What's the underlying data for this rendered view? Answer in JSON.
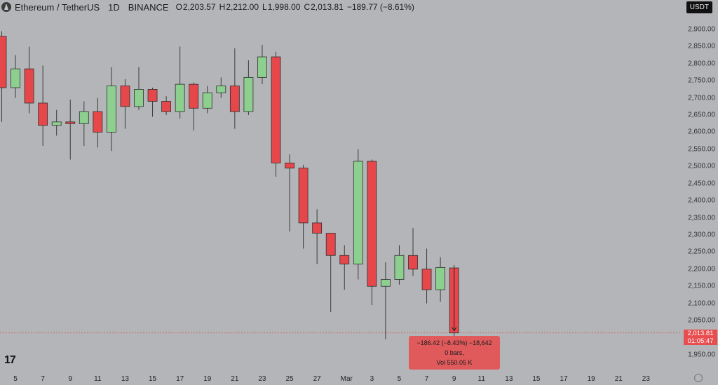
{
  "header": {
    "symbol": "Ethereum / TetherUS",
    "timeframe": "1D",
    "exchange": "BINANCE",
    "o_label": "O",
    "o_value": "2,203.57",
    "h_label": "H",
    "h_value": "2,212.00",
    "l_label": "L",
    "l_value": "1,998.00",
    "c_label": "C",
    "c_value": "2,013.81",
    "change": "−189.77 (−8.61%)"
  },
  "currency_button": "USDT",
  "price_tag": {
    "price": "2,013.81",
    "countdown": "01:05:47"
  },
  "tooltip": {
    "line1": "−186.42 (−8.43%) −18,642",
    "line2": "0 bars,",
    "line3": "Vol 550.05 K"
  },
  "logo_text": "17",
  "colors": {
    "up": "#8ccf8e",
    "down": "#e6474a",
    "background": "#b4b5b8",
    "wick": "#3a3a3a"
  },
  "chart_data": {
    "type": "candlestick",
    "y_axis": {
      "range": [
        1910,
        2930
      ],
      "ticks": [
        "1,950.00",
        "2,050.00",
        "2,100.00",
        "2,150.00",
        "2,200.00",
        "2,250.00",
        "2,300.00",
        "2,350.00",
        "2,400.00",
        "2,450.00",
        "2,500.00",
        "2,550.00",
        "2,600.00",
        "2,650.00",
        "2,700.00",
        "2,750.00",
        "2,800.00",
        "2,850.00",
        "2,900.00"
      ]
    },
    "x_axis": {
      "ticks": [
        "5",
        "7",
        "9",
        "11",
        "13",
        "15",
        "17",
        "19",
        "21",
        "23",
        "25",
        "27",
        "Mar",
        "3",
        "5",
        "7",
        "9",
        "11",
        "13",
        "15",
        "17",
        "19",
        "21",
        "23"
      ]
    },
    "candles": [
      {
        "date": "Feb 4",
        "o": 2880,
        "h": 2895,
        "l": 2630,
        "c": 2730
      },
      {
        "date": "Feb 5",
        "o": 2730,
        "h": 2825,
        "l": 2700,
        "c": 2785
      },
      {
        "date": "Feb 6",
        "o": 2785,
        "h": 2850,
        "l": 2655,
        "c": 2685
      },
      {
        "date": "Feb 7",
        "o": 2685,
        "h": 2795,
        "l": 2560,
        "c": 2620
      },
      {
        "date": "Feb 8",
        "o": 2620,
        "h": 2665,
        "l": 2590,
        "c": 2630
      },
      {
        "date": "Feb 9",
        "o": 2630,
        "h": 2695,
        "l": 2520,
        "c": 2625
      },
      {
        "date": "Feb 10",
        "o": 2625,
        "h": 2690,
        "l": 2560,
        "c": 2660
      },
      {
        "date": "Feb 11",
        "o": 2660,
        "h": 2700,
        "l": 2555,
        "c": 2600
      },
      {
        "date": "Feb 12",
        "o": 2600,
        "h": 2790,
        "l": 2545,
        "c": 2735
      },
      {
        "date": "Feb 13",
        "o": 2735,
        "h": 2755,
        "l": 2610,
        "c": 2675
      },
      {
        "date": "Feb 14",
        "o": 2675,
        "h": 2790,
        "l": 2665,
        "c": 2725
      },
      {
        "date": "Feb 15",
        "o": 2725,
        "h": 2730,
        "l": 2645,
        "c": 2690
      },
      {
        "date": "Feb 16",
        "o": 2690,
        "h": 2705,
        "l": 2650,
        "c": 2660
      },
      {
        "date": "Feb 17",
        "o": 2660,
        "h": 2850,
        "l": 2640,
        "c": 2740
      },
      {
        "date": "Feb 18",
        "o": 2740,
        "h": 2745,
        "l": 2605,
        "c": 2670
      },
      {
        "date": "Feb 19",
        "o": 2670,
        "h": 2735,
        "l": 2655,
        "c": 2715
      },
      {
        "date": "Feb 20",
        "o": 2715,
        "h": 2760,
        "l": 2700,
        "c": 2735
      },
      {
        "date": "Feb 21",
        "o": 2735,
        "h": 2845,
        "l": 2610,
        "c": 2660
      },
      {
        "date": "Feb 22",
        "o": 2660,
        "h": 2810,
        "l": 2650,
        "c": 2760
      },
      {
        "date": "Feb 23",
        "o": 2760,
        "h": 2855,
        "l": 2740,
        "c": 2820
      },
      {
        "date": "Feb 24",
        "o": 2820,
        "h": 2835,
        "l": 2470,
        "c": 2510
      },
      {
        "date": "Feb 25",
        "o": 2510,
        "h": 2535,
        "l": 2310,
        "c": 2495
      },
      {
        "date": "Feb 26",
        "o": 2495,
        "h": 2505,
        "l": 2260,
        "c": 2335
      },
      {
        "date": "Feb 27",
        "o": 2335,
        "h": 2375,
        "l": 2215,
        "c": 2305
      },
      {
        "date": "Feb 28",
        "o": 2305,
        "h": 2305,
        "l": 2075,
        "c": 2240
      },
      {
        "date": "Mar 1",
        "o": 2240,
        "h": 2270,
        "l": 2140,
        "c": 2215
      },
      {
        "date": "Mar 2",
        "o": 2215,
        "h": 2550,
        "l": 2170,
        "c": 2515
      },
      {
        "date": "Mar 3",
        "o": 2515,
        "h": 2520,
        "l": 2095,
        "c": 2150
      },
      {
        "date": "Mar 4",
        "o": 2150,
        "h": 2220,
        "l": 1995,
        "c": 2170
      },
      {
        "date": "Mar 5",
        "o": 2170,
        "h": 2270,
        "l": 2155,
        "c": 2240
      },
      {
        "date": "Mar 6",
        "o": 2240,
        "h": 2320,
        "l": 2180,
        "c": 2200
      },
      {
        "date": "Mar 7",
        "o": 2200,
        "h": 2260,
        "l": 2100,
        "c": 2140
      },
      {
        "date": "Mar 8",
        "o": 2140,
        "h": 2235,
        "l": 2105,
        "c": 2205
      },
      {
        "date": "Mar 9",
        "o": 2203.57,
        "h": 2212,
        "l": 1998,
        "c": 2013.81
      }
    ]
  }
}
